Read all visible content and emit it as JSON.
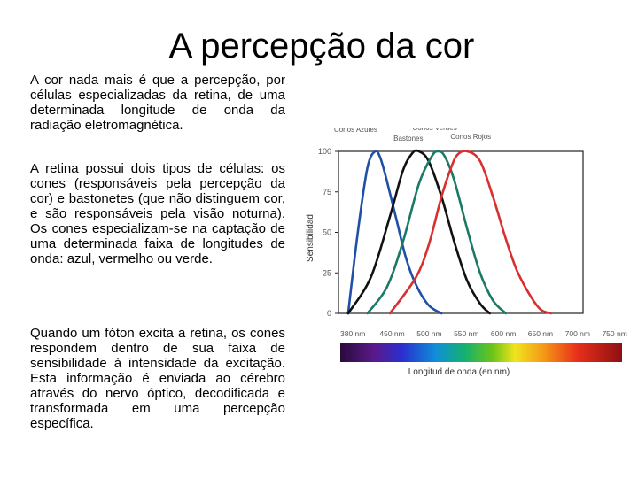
{
  "title": "A percepção da cor",
  "paragraphs": {
    "p1": "A cor nada mais é que a percepção, por células especializadas da retina, de uma determinada longitude de onda da radiação eletromagnética.",
    "p2": "A retina possui dois tipos de células: os cones (responsáveis pela percepção da cor) e bastonetes (que não distinguem cor, e são responsáveis pela visão noturna). Os cones especializam-se na captação de uma determinada faixa de longitudes de onda: azul, vermelho ou verde.",
    "p3": "Quando um fóton excita a retina, os cones respondem dentro de sua faixa de sensibilidade à intensidade da excitação. Esta informação é enviada ao cérebro através do nervo óptico, decodificada e transformada em uma percepção específica."
  },
  "chart_data": {
    "type": "line",
    "title": "",
    "ylabel": "Sensibilidad",
    "xlabel": "Longitud de onda (en nm)",
    "ylim": [
      0,
      100
    ],
    "xlim": [
      380,
      760
    ],
    "yticks": [
      "0",
      "25",
      "50",
      "75",
      "100"
    ],
    "xticks": [
      {
        "value": 380,
        "label": "380 nm"
      },
      {
        "value": 450,
        "label": "450 nm"
      },
      {
        "value": 500,
        "label": "500 nm"
      },
      {
        "value": 550,
        "label": "550 nm"
      },
      {
        "value": 600,
        "label": "600 nm"
      },
      {
        "value": 650,
        "label": "650 nm"
      },
      {
        "value": 700,
        "label": "700 nm"
      },
      {
        "value": 750,
        "label": "750 nm"
      }
    ],
    "grid": false,
    "legend": "labels above curve peaks",
    "spectrum_bar": true,
    "series": [
      {
        "name": "Conos Azules",
        "color": "#1f4fa6",
        "x": [
          395,
          410,
          425,
          437,
          445,
          455,
          470,
          485,
          500,
          520,
          540
        ],
        "y": [
          0,
          50,
          90,
          100,
          96,
          82,
          58,
          34,
          18,
          5,
          0
        ]
      },
      {
        "name": "Bastones",
        "color": "#111111",
        "x": [
          395,
          430,
          460,
          480,
          495,
          505,
          520,
          540,
          560,
          580,
          600,
          615
        ],
        "y": [
          0,
          22,
          60,
          88,
          99,
          100,
          94,
          72,
          44,
          20,
          6,
          0
        ]
      },
      {
        "name": "Conos Verdes",
        "color": "#1b7a66",
        "x": [
          425,
          455,
          480,
          505,
          525,
          535,
          545,
          560,
          580,
          600,
          620,
          640
        ],
        "y": [
          0,
          16,
          44,
          80,
          97,
          100,
          97,
          82,
          52,
          25,
          8,
          0
        ]
      },
      {
        "name": "Conos Rojos",
        "color": "#d83030",
        "x": [
          460,
          500,
          520,
          540,
          555,
          565,
          580,
          600,
          620,
          640,
          660,
          690,
          710
        ],
        "y": [
          0,
          22,
          42,
          72,
          90,
          98,
          100,
          94,
          72,
          46,
          24,
          4,
          0
        ]
      }
    ],
    "colors": {
      "axis": "#222222",
      "tick_text": "#555555"
    }
  }
}
